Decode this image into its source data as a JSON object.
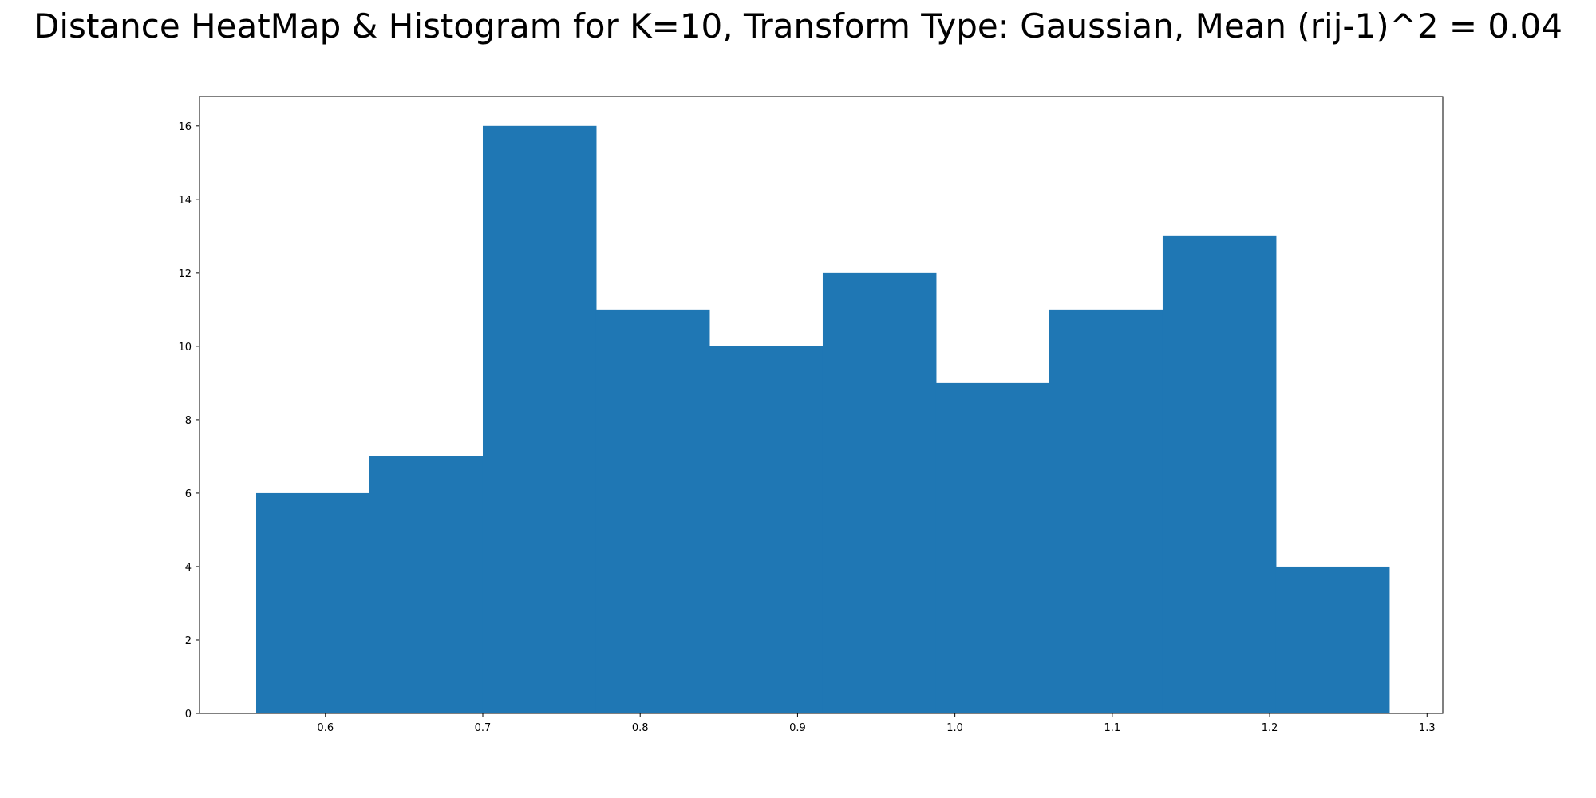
{
  "chart_data": {
    "type": "bar",
    "title": "Distance HeatMap & Histogram for K=10, Transform Type: Gaussian, Mean (rij-1)^2 = 0.04",
    "xlabel": "",
    "ylabel": "",
    "bins": [
      {
        "x0": 0.556,
        "x1": 0.628,
        "count": 6
      },
      {
        "x0": 0.628,
        "x1": 0.7,
        "count": 7
      },
      {
        "x0": 0.7,
        "x1": 0.772,
        "count": 16
      },
      {
        "x0": 0.772,
        "x1": 0.844,
        "count": 11
      },
      {
        "x0": 0.844,
        "x1": 0.916,
        "count": 10
      },
      {
        "x0": 0.916,
        "x1": 0.988,
        "count": 12
      },
      {
        "x0": 0.988,
        "x1": 1.06,
        "count": 9
      },
      {
        "x0": 1.06,
        "x1": 1.132,
        "count": 11
      },
      {
        "x0": 1.132,
        "x1": 1.204,
        "count": 13
      },
      {
        "x0": 1.204,
        "x1": 1.276,
        "count": 4
      }
    ],
    "xlim": [
      0.52,
      1.31
    ],
    "ylim": [
      0,
      16.8
    ],
    "xticks": [
      "0.6",
      "0.7",
      "0.8",
      "0.9",
      "1.0",
      "1.1",
      "1.2",
      "1.3"
    ],
    "yticks": [
      "0",
      "2",
      "4",
      "6",
      "8",
      "10",
      "12",
      "14",
      "16"
    ],
    "bar_color": "#1f77b4",
    "grid": false,
    "legend": "none"
  }
}
